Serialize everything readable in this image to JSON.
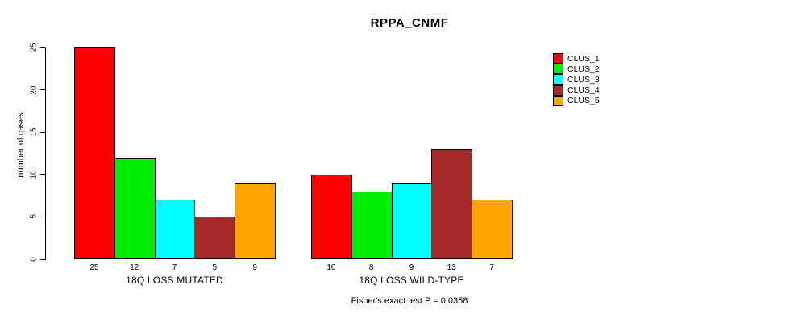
{
  "chart_data": {
    "type": "bar",
    "title": "RPPA_CNMF",
    "categories": [
      "18Q LOSS MUTATED",
      "18Q LOSS WILD-TYPE"
    ],
    "series": [
      {
        "name": "CLUS_1",
        "color": "#ff0000",
        "values": [
          25,
          10
        ]
      },
      {
        "name": "CLUS_2",
        "color": "#00ee00",
        "values": [
          12,
          8
        ]
      },
      {
        "name": "CLUS_3",
        "color": "#00ffff",
        "values": [
          7,
          9
        ]
      },
      {
        "name": "CLUS_4",
        "color": "#a52a2a",
        "values": [
          5,
          13
        ]
      },
      {
        "name": "CLUS_5",
        "color": "#ffa500",
        "values": [
          9,
          7
        ]
      }
    ],
    "ylabel": "number of cases",
    "xlabel": "",
    "ylim": [
      0,
      25
    ],
    "yticks": [
      0,
      5,
      10,
      15,
      20,
      25
    ],
    "bar_value_labels_shown": true,
    "grid": false,
    "legend_position": "top-right",
    "annotation": "Fisher's exact test P = 0.0358"
  }
}
